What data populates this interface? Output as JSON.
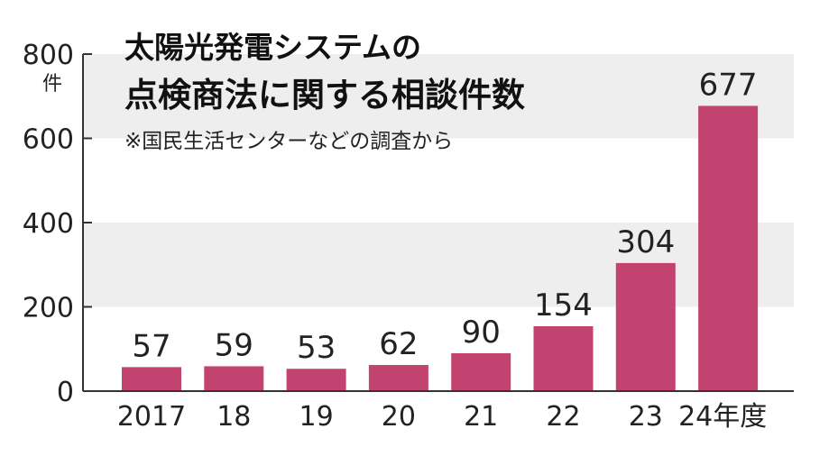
{
  "chart_data": {
    "type": "bar",
    "title_line1": "太陽光発電システムの",
    "title_line2": "点検商法に関する相談件数",
    "note": "※国民生活センターなどの調査から",
    "y_unit": "件",
    "categories": [
      "2017",
      "18",
      "19",
      "20",
      "21",
      "22",
      "23",
      "24年度"
    ],
    "values": [
      57,
      59,
      53,
      62,
      90,
      154,
      304,
      677
    ],
    "ylim": [
      0,
      800
    ],
    "yticks": [
      0,
      200,
      400,
      600,
      800
    ],
    "bar_color": "#c2436f",
    "band_color": "#eeeeee",
    "grid": "alternating bands"
  }
}
